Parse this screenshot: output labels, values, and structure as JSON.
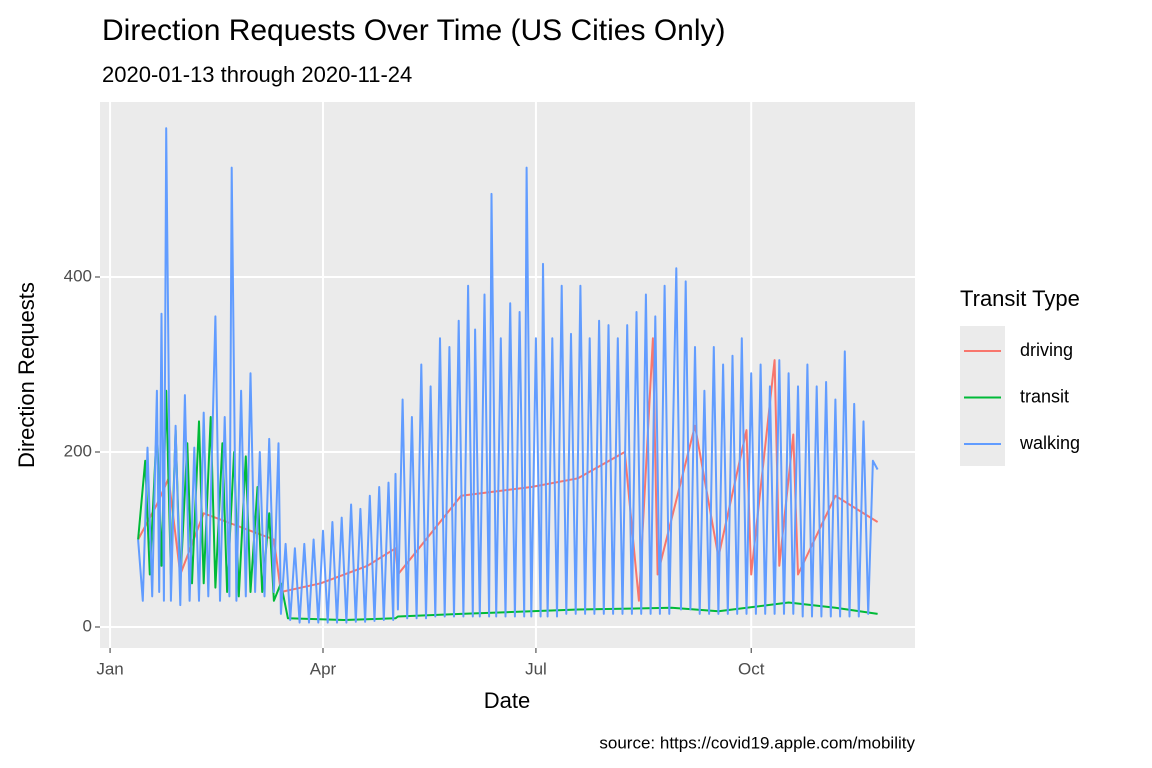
{
  "chart_data": {
    "type": "line",
    "title": "Direction Requests Over Time (US Cities Only)",
    "subtitle": "2020-01-13 through 2020-11-24",
    "x_label": "Date",
    "y_label": "Direction Requests",
    "caption": "source: https://covid19.apple.com/mobility",
    "legend_title": "Transit Type",
    "legend": "right",
    "grid": true,
    "xlim": [
      -4.3,
      344
    ],
    "ylim": [
      -24,
      600
    ],
    "xticks": [
      {
        "value": 0,
        "label": "Jan"
      },
      {
        "value": 91,
        "label": "Apr"
      },
      {
        "value": 182,
        "label": "Jul"
      },
      {
        "value": 274,
        "label": "Oct"
      }
    ],
    "yticks": [
      0,
      200,
      400
    ],
    "series": [
      {
        "name": "driving",
        "color": "#F8766D",
        "x": [
          12,
          20,
          25,
          30,
          40,
          50,
          60,
          70,
          73,
          90,
          110,
          122,
          123,
          150,
          180,
          200,
          220,
          226,
          232,
          234,
          250,
          260,
          272,
          274,
          284,
          286,
          292,
          294,
          310,
          328
        ],
        "values": [
          100,
          140,
          170,
          60,
          130,
          120,
          110,
          100,
          40,
          50,
          70,
          90,
          60,
          150,
          160,
          170,
          200,
          30,
          330,
          60,
          230,
          80,
          225,
          60,
          305,
          70,
          220,
          60,
          150,
          120
        ]
      },
      {
        "name": "transit",
        "color": "#00BA38",
        "x": [
          12,
          15,
          17,
          20,
          22,
          24,
          26,
          28,
          30,
          33,
          35,
          38,
          40,
          43,
          45,
          48,
          50,
          53,
          55,
          58,
          60,
          63,
          65,
          68,
          70,
          73,
          76,
          100,
          122,
          123,
          150,
          180,
          200,
          240,
          260,
          290,
          310,
          328
        ],
        "values": [
          100,
          190,
          60,
          230,
          70,
          270,
          60,
          225,
          50,
          210,
          50,
          235,
          50,
          240,
          45,
          210,
          40,
          200,
          35,
          195,
          40,
          160,
          40,
          130,
          30,
          50,
          10,
          8,
          10,
          12,
          15,
          18,
          20,
          22,
          18,
          28,
          22,
          15
        ]
      },
      {
        "name": "walking",
        "color": "#619CFF",
        "x": [
          12,
          14,
          16,
          18,
          20,
          21,
          22,
          23,
          24,
          26,
          28,
          30,
          32,
          34,
          36,
          38,
          40,
          42,
          45,
          47,
          49,
          51,
          52,
          54,
          56,
          58,
          60,
          62,
          64,
          66,
          68,
          70,
          72,
          73,
          75,
          77,
          79,
          81,
          83,
          85,
          87,
          89,
          91,
          93,
          95,
          97,
          99,
          101,
          103,
          105,
          107,
          109,
          111,
          113,
          115,
          117,
          119,
          121,
          122,
          123,
          125,
          127,
          129,
          131,
          133,
          135,
          137,
          139,
          141,
          143,
          145,
          147,
          149,
          151,
          153,
          155,
          156,
          158,
          160,
          162,
          163,
          165,
          167,
          169,
          171,
          173,
          175,
          177,
          178,
          180,
          182,
          184,
          185,
          187,
          189,
          191,
          193,
          195,
          197,
          199,
          201,
          203,
          205,
          207,
          209,
          211,
          213,
          215,
          217,
          219,
          221,
          223,
          225,
          227,
          229,
          231,
          233,
          235,
          237,
          239,
          242,
          244,
          246,
          248,
          250,
          252,
          254,
          256,
          258,
          260,
          262,
          264,
          266,
          268,
          270,
          272,
          274,
          276,
          278,
          280,
          282,
          284,
          286,
          288,
          290,
          292,
          294,
          296,
          298,
          300,
          302,
          304,
          306,
          308,
          310,
          312,
          314,
          316,
          318,
          320,
          322,
          324,
          326,
          328
        ],
        "values": [
          100,
          30,
          205,
          35,
          270,
          40,
          358,
          30,
          570,
          30,
          230,
          25,
          265,
          30,
          205,
          30,
          245,
          35,
          355,
          30,
          240,
          35,
          525,
          30,
          270,
          35,
          290,
          40,
          200,
          35,
          215,
          40,
          210,
          15,
          95,
          8,
          90,
          5,
          95,
          5,
          100,
          5,
          110,
          5,
          120,
          5,
          125,
          5,
          140,
          6,
          135,
          6,
          150,
          7,
          160,
          8,
          165,
          8,
          175,
          20,
          260,
          10,
          240,
          10,
          300,
          10,
          275,
          12,
          330,
          12,
          320,
          12,
          350,
          12,
          390,
          12,
          340,
          12,
          380,
          12,
          495,
          12,
          330,
          12,
          370,
          12,
          360,
          12,
          525,
          12,
          330,
          12,
          415,
          12,
          330,
          12,
          390,
          15,
          335,
          15,
          390,
          15,
          330,
          15,
          350,
          15,
          345,
          15,
          330,
          15,
          345,
          15,
          360,
          15,
          380,
          15,
          355,
          15,
          390,
          15,
          410,
          20,
          395,
          20,
          320,
          15,
          270,
          15,
          320,
          15,
          300,
          15,
          310,
          15,
          330,
          15,
          290,
          15,
          300,
          15,
          275,
          15,
          305,
          15,
          290,
          15,
          275,
          12,
          300,
          12,
          275,
          12,
          280,
          12,
          260,
          12,
          315,
          12,
          255,
          12,
          235,
          15,
          190,
          180
        ]
      }
    ]
  }
}
